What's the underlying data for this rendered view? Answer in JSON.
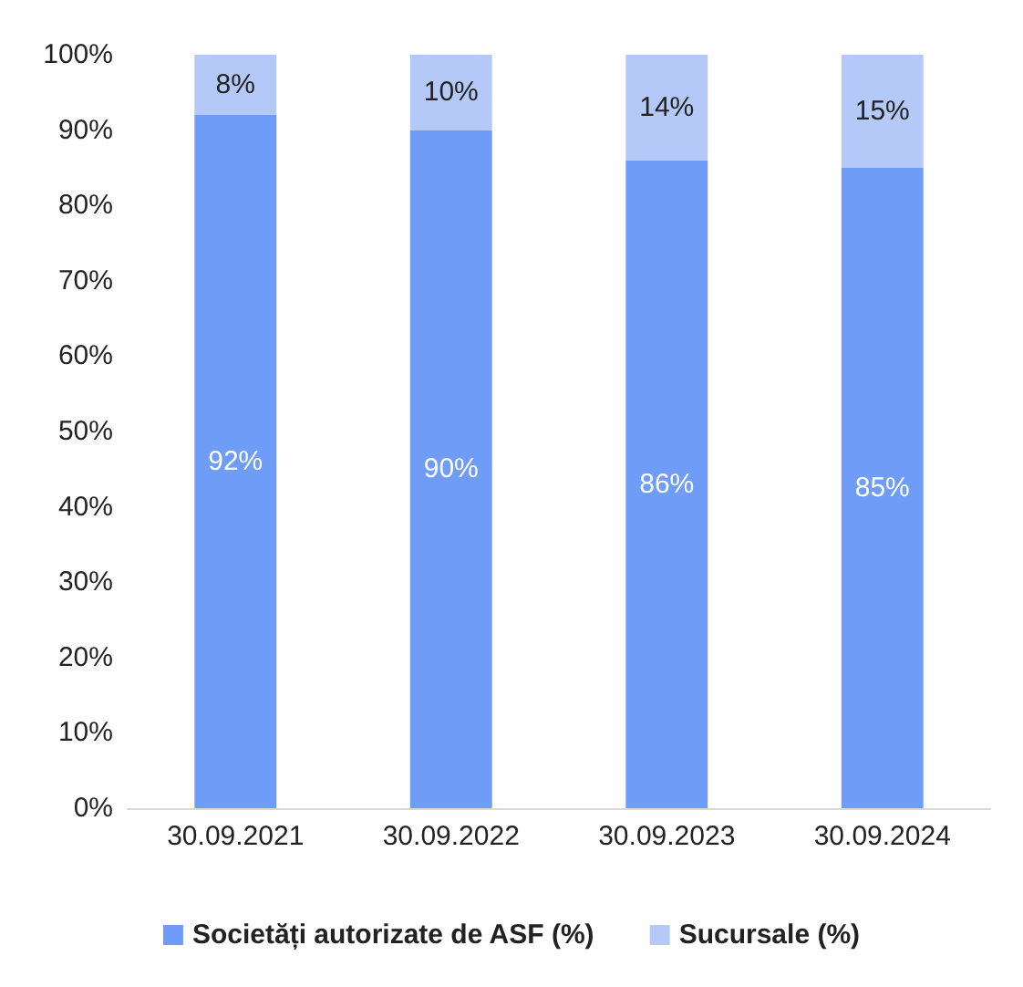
{
  "chart_data": {
    "type": "bar",
    "stacked": true,
    "categories": [
      "30.09.2021",
      "30.09.2022",
      "30.09.2023",
      "30.09.2024"
    ],
    "series": [
      {
        "name": "Societăți autorizate de ASF (%)",
        "color": "#6f9cf7",
        "values": [
          92,
          90,
          86,
          85
        ],
        "value_labels": [
          "92%",
          "90%",
          "86%",
          "85%"
        ]
      },
      {
        "name": "Sucursale (%)",
        "color": "#b4c9f8",
        "values": [
          8,
          10,
          14,
          15
        ],
        "value_labels": [
          "8%",
          "10%",
          "14%",
          "15%"
        ]
      }
    ],
    "ylim": [
      0,
      100
    ],
    "yticks": [
      {
        "value": 0,
        "label": "0%"
      },
      {
        "value": 10,
        "label": "10%"
      },
      {
        "value": 20,
        "label": "20%"
      },
      {
        "value": 30,
        "label": "30%"
      },
      {
        "value": 40,
        "label": "40%"
      },
      {
        "value": 50,
        "label": "50%"
      },
      {
        "value": 60,
        "label": "60%"
      },
      {
        "value": 70,
        "label": "70%"
      },
      {
        "value": 80,
        "label": "80%"
      },
      {
        "value": 90,
        "label": "90%"
      },
      {
        "value": 100,
        "label": "100%"
      }
    ],
    "grid": false,
    "legend": "bottom"
  }
}
